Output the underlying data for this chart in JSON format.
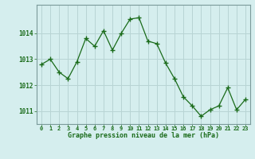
{
  "x": [
    0,
    1,
    2,
    3,
    4,
    5,
    6,
    7,
    8,
    9,
    10,
    11,
    12,
    13,
    14,
    15,
    16,
    17,
    18,
    19,
    20,
    21,
    22,
    23
  ],
  "y": [
    1012.8,
    1013.0,
    1012.5,
    1012.25,
    1012.9,
    1013.8,
    1013.5,
    1014.1,
    1013.35,
    1014.0,
    1014.55,
    1014.6,
    1013.7,
    1013.6,
    1012.85,
    1012.25,
    1011.55,
    1011.2,
    1010.8,
    1011.05,
    1011.2,
    1011.9,
    1011.05,
    1011.45
  ],
  "line_color": "#1a6b1a",
  "marker": "+",
  "bg_color": "#d5eeee",
  "grid_color": "#b8d4d4",
  "axis_label_color": "#1a6b1a",
  "tick_label_color": "#1a6b1a",
  "xlabel": "Graphe pression niveau de la mer (hPa)",
  "ylim": [
    1010.5,
    1015.1
  ],
  "yticks": [
    1011,
    1012,
    1013,
    1014
  ],
  "xticks": [
    0,
    1,
    2,
    3,
    4,
    5,
    6,
    7,
    8,
    9,
    10,
    11,
    12,
    13,
    14,
    15,
    16,
    17,
    18,
    19,
    20,
    21,
    22,
    23
  ],
  "border_color": "#7a9a9a",
  "figsize": [
    3.2,
    2.0
  ],
  "dpi": 100
}
